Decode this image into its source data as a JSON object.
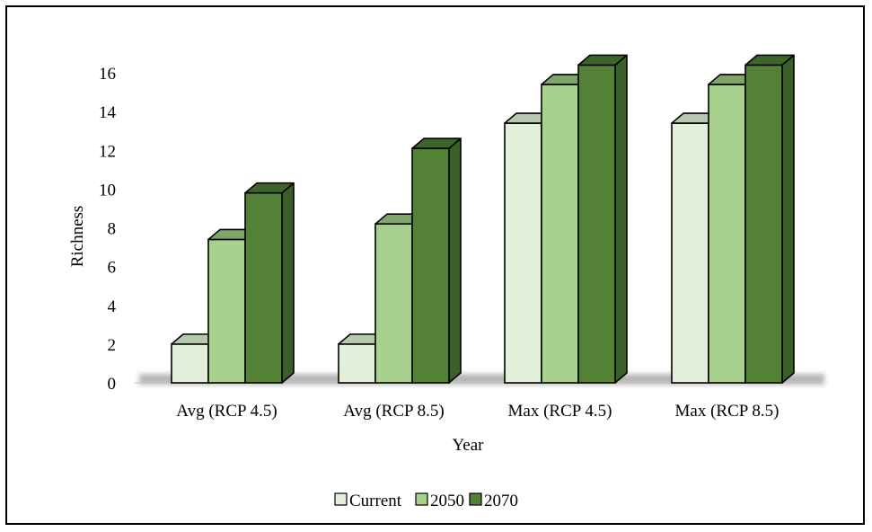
{
  "chart_data": {
    "type": "bar",
    "title": "",
    "xlabel": "Year",
    "ylabel": "Richness",
    "ylim": [
      0,
      16
    ],
    "yticks": [
      0,
      2,
      4,
      6,
      8,
      10,
      12,
      14,
      16
    ],
    "categories": [
      "Avg (RCP 4.5)",
      "Avg (RCP 8.5)",
      "Max (RCP 4.5)",
      "Max (RCP 8.5)"
    ],
    "series": [
      {
        "name": "Current",
        "values": [
          2,
          2,
          13.4,
          13.4
        ],
        "color": "#e2efd9",
        "top": "#b7c9ad",
        "side": "#c6d6bc"
      },
      {
        "name": "2050",
        "values": [
          7.4,
          8.2,
          15.4,
          15.4
        ],
        "color": "#a9d18e",
        "top": "#7fa56a",
        "side": "#8db878"
      },
      {
        "name": "2070",
        "values": [
          9.8,
          12.1,
          16.4,
          16.4
        ],
        "color": "#538135",
        "top": "#3d6527",
        "side": "#3b5f27"
      }
    ],
    "grid": false,
    "legend": "bottom",
    "style": "3d-clustered-column"
  }
}
